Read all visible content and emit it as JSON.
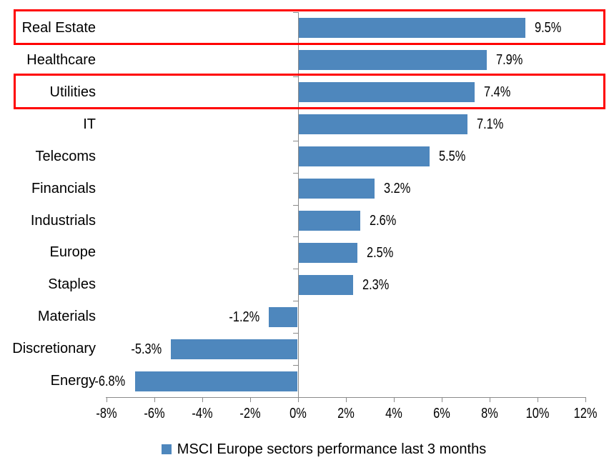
{
  "chart_data": {
    "type": "bar",
    "orientation": "horizontal",
    "title": "",
    "xlabel": "",
    "ylabel": "",
    "unit": "%",
    "categories": [
      "Real Estate",
      "Healthcare",
      "Utilities",
      "IT",
      "Telecoms",
      "Financials",
      "Industrials",
      "Europe",
      "Staples",
      "Materials",
      "Discretionary",
      "Energy"
    ],
    "values": [
      9.5,
      7.9,
      7.4,
      7.1,
      5.5,
      3.2,
      2.6,
      2.5,
      2.3,
      -1.2,
      -5.3,
      -6.8
    ],
    "data_labels": [
      "9.5%",
      "7.9%",
      "7.4%",
      "7.1%",
      "5.5%",
      "3.2%",
      "2.6%",
      "2.5%",
      "2.3%",
      "-1.2%",
      "-5.3%",
      "-6.8%"
    ],
    "x_ticks": [
      "-8%",
      "-6%",
      "-4%",
      "-2%",
      "0%",
      "2%",
      "4%",
      "6%",
      "8%",
      "10%",
      "12%"
    ],
    "x_tick_values": [
      -8,
      -6,
      -4,
      -2,
      0,
      2,
      4,
      6,
      8,
      10,
      12
    ],
    "xlim": [
      -8,
      12
    ],
    "grid": "off",
    "legend": "MSCI Europe sectors performance last 3 months",
    "legend_position": "bottom",
    "bar_color": "#4E87BD",
    "axis_color": "#8A8A8A",
    "text_color": "#000000",
    "highlight_color": "#FF0000",
    "highlighted_categories": [
      "Real Estate",
      "Utilities"
    ]
  }
}
